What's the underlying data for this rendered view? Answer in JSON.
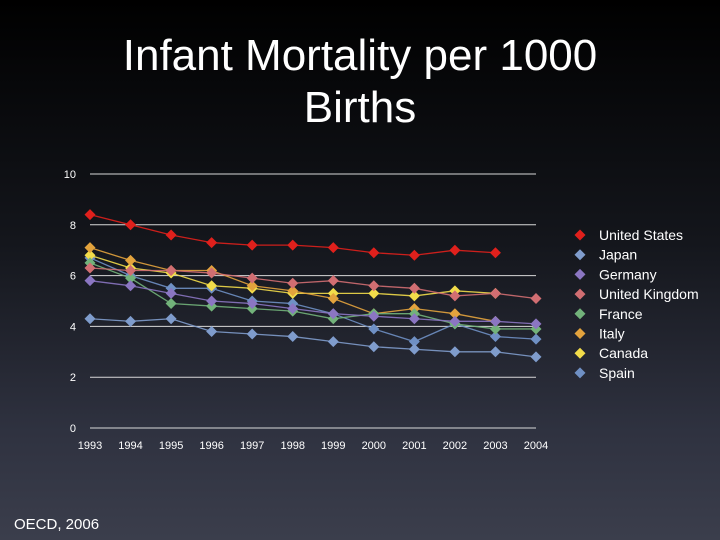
{
  "title_lines": [
    "Infant Mortality per 1000",
    "Births"
  ],
  "source": "OECD, 2006",
  "chart_data": {
    "type": "line",
    "categories": [
      "1993",
      "1994",
      "1995",
      "1996",
      "1997",
      "1998",
      "1999",
      "2000",
      "2001",
      "2002",
      "2003",
      "2004"
    ],
    "ylim": [
      0,
      10
    ],
    "yticks": [
      0,
      2,
      4,
      6,
      8,
      10
    ],
    "grid": true,
    "legend_position": "right",
    "series": [
      {
        "name": "United States",
        "color": "#e0201c",
        "values": [
          8.4,
          8.0,
          7.6,
          7.3,
          7.2,
          7.2,
          7.1,
          6.9,
          6.8,
          7.0,
          6.9,
          null
        ]
      },
      {
        "name": "Japan",
        "color": "#7f9ccc",
        "values": [
          4.3,
          4.2,
          4.3,
          3.8,
          3.7,
          3.6,
          3.4,
          3.2,
          3.1,
          3.0,
          3.0,
          2.8
        ]
      },
      {
        "name": "Germany",
        "color": "#8b76c2",
        "values": [
          5.8,
          5.6,
          5.3,
          5.0,
          4.9,
          4.7,
          4.5,
          4.4,
          4.3,
          4.2,
          4.2,
          4.1
        ]
      },
      {
        "name": "United Kingdom",
        "color": "#d16e72",
        "values": [
          6.3,
          6.2,
          6.2,
          6.1,
          5.9,
          5.7,
          5.8,
          5.6,
          5.5,
          5.2,
          5.3,
          5.1
        ]
      },
      {
        "name": "France",
        "color": "#72b27a",
        "values": [
          6.5,
          5.9,
          4.9,
          4.8,
          4.7,
          4.6,
          4.3,
          4.5,
          4.5,
          4.1,
          3.9,
          3.9
        ]
      },
      {
        "name": "Italy",
        "color": "#e3a33d",
        "values": [
          7.1,
          6.6,
          6.2,
          6.2,
          5.6,
          5.4,
          5.1,
          4.5,
          4.7,
          4.5,
          4.2,
          null
        ]
      },
      {
        "name": "Canada",
        "color": "#f2dc4a",
        "values": [
          6.8,
          6.3,
          6.1,
          5.6,
          5.5,
          5.3,
          5.3,
          5.3,
          5.2,
          5.4,
          5.3,
          null
        ]
      },
      {
        "name": "Spain",
        "color": "#6f90c4",
        "values": [
          6.7,
          6.0,
          5.5,
          5.5,
          5.0,
          4.9,
          4.5,
          3.9,
          3.4,
          4.1,
          3.6,
          3.5
        ]
      }
    ]
  }
}
